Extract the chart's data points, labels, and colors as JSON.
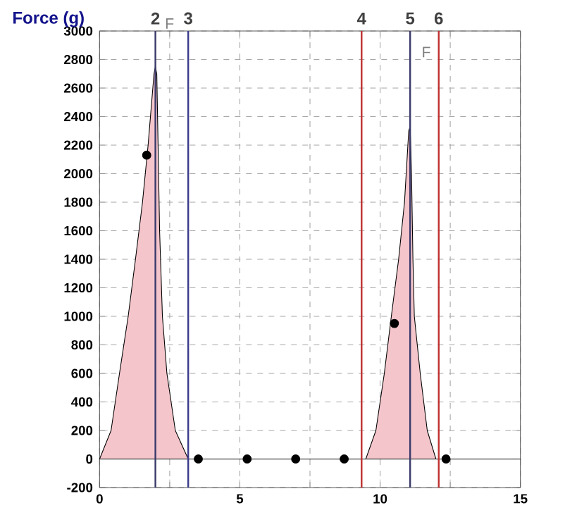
{
  "chart_data": {
    "type": "area",
    "ylabel": "Force (g)",
    "series": [
      {
        "color": "#f4c6cc",
        "x": [
          0,
          0.41,
          0.71,
          1.02,
          1.28,
          1.53,
          1.73,
          1.94,
          1.99,
          2.04,
          2.14,
          2.24,
          2.4,
          2.7,
          3.16,
          9.49,
          9.85,
          10.15,
          10.4,
          10.66,
          10.87,
          11.02,
          11.07,
          11.12,
          11.17,
          11.22,
          11.43,
          11.68,
          11.99,
          15
        ],
        "values": [
          0,
          200,
          600,
          1000,
          1400,
          1800,
          2200,
          2700,
          2750,
          2700,
          1600,
          1000,
          600,
          200,
          0,
          0,
          200,
          600,
          1000,
          1400,
          1800,
          2300,
          2330,
          2000,
          1400,
          1000,
          600,
          200,
          0,
          0
        ]
      },
      {
        "type": "scatter",
        "color": "#000000",
        "marker": "circle",
        "x": [
          1.68,
          3.52,
          5.26,
          6.99,
          8.72,
          10.51,
          12.35
        ],
        "values": [
          2130,
          0,
          0,
          0,
          0,
          950,
          0
        ]
      }
    ],
    "xlim": [
      0,
      15
    ],
    "xticks": [
      0,
      {
        "value": 2.5,
        "label": null
      },
      5,
      {
        "value": 7.5,
        "label": null
      },
      10,
      {
        "value": 12.5,
        "label": null
      },
      15
    ],
    "ylim": [
      -200,
      3000
    ],
    "yticks": [
      -200,
      0,
      200,
      400,
      600,
      800,
      1000,
      1200,
      1400,
      1600,
      1800,
      2000,
      2200,
      2400,
      2600,
      2800,
      3000
    ],
    "grid": true,
    "ref_lines": [
      {
        "axis": "x",
        "value": 1.99,
        "color": "#3a3a6a"
      },
      {
        "axis": "x",
        "value": 3.16,
        "color": "#3a3a8a"
      },
      {
        "axis": "x",
        "value": 9.34,
        "color": "#c03030"
      },
      {
        "axis": "x",
        "value": 11.07,
        "color": "#3a3a6a"
      },
      {
        "axis": "x",
        "value": 12.09,
        "color": "#c03030"
      }
    ],
    "annotations": [
      "F",
      "F",
      "2",
      "3",
      "4",
      "5",
      "6"
    ]
  }
}
